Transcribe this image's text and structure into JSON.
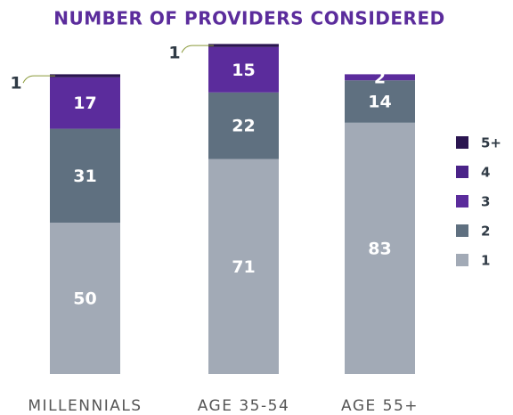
{
  "chart_data": {
    "type": "stacked_bar",
    "title": "NUMBER OF PROVIDERS CONSIDERED",
    "categories": [
      "MILLENNIALS",
      "AGE 35-54",
      "AGE 55+"
    ],
    "series": [
      {
        "name": "1",
        "color": "#a2aab6",
        "values": [
          50,
          71,
          83
        ]
      },
      {
        "name": "2",
        "color": "#5f7080",
        "values": [
          31,
          22,
          14
        ]
      },
      {
        "name": "3",
        "color": "#5b2c9c",
        "values": [
          17,
          15,
          2
        ]
      },
      {
        "name": "4",
        "color": "#4a2388",
        "values": [
          null,
          null,
          null
        ]
      },
      {
        "name": "5+",
        "color": "#2a1550",
        "values": [
          1,
          1,
          null
        ]
      }
    ],
    "ylim": [
      0,
      110
    ],
    "legend": "right"
  }
}
